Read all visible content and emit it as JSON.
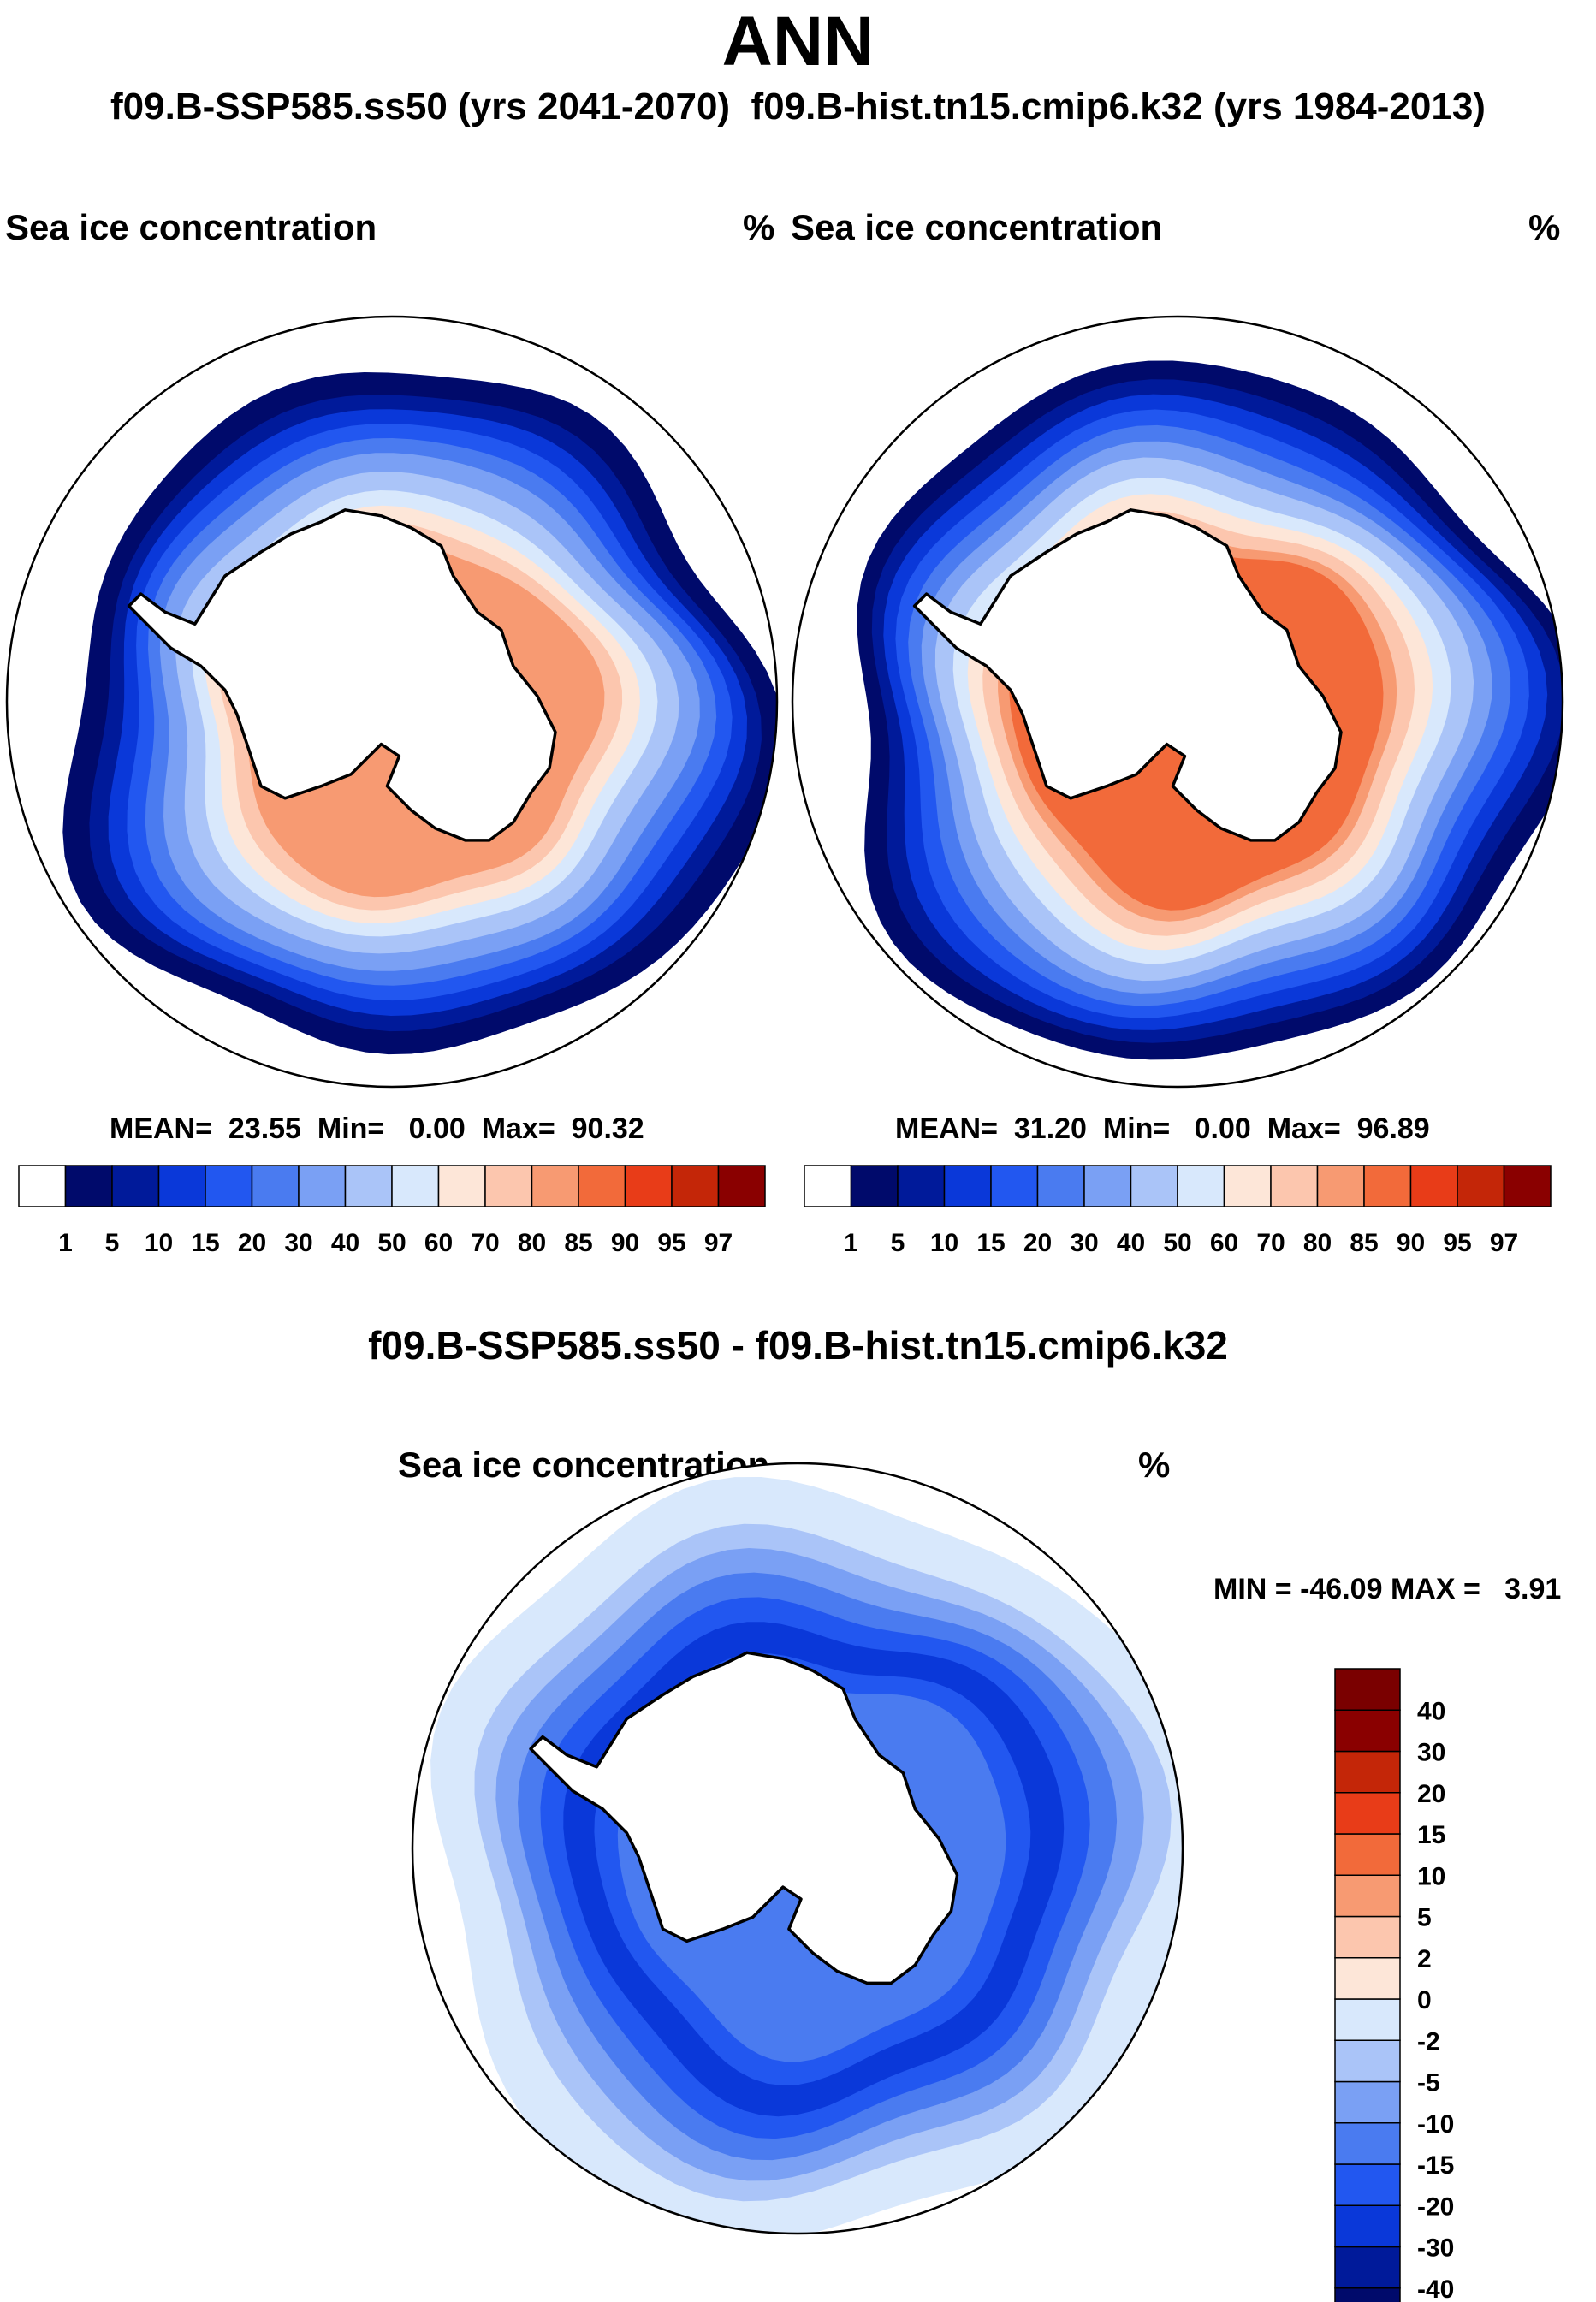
{
  "chart_data": [
    {
      "type": "heatmap",
      "title": "Sea ice concentration",
      "unit": "%",
      "case": "f09.B-SSP585.ss50 (yrs 2041-2070)",
      "stats": {
        "mean_label": "MEAN=",
        "mean": "23.55",
        "min_label": "Min=",
        "min": "0.00",
        "max_label": "Max=",
        "max": "90.32"
      },
      "levels": [
        "1",
        "5",
        "10",
        "15",
        "20",
        "30",
        "40",
        "50",
        "60",
        "70",
        "80",
        "85",
        "90",
        "95",
        "97"
      ],
      "rings": [
        {
          "value": 0.5,
          "radius": 1.0
        },
        {
          "value": 3,
          "radius": 0.91
        },
        {
          "value": 7,
          "radius": 0.85
        },
        {
          "value": 12,
          "radius": 0.81
        },
        {
          "value": 17,
          "radius": 0.77
        },
        {
          "value": 25,
          "radius": 0.73
        },
        {
          "value": 35,
          "radius": 0.69
        },
        {
          "value": 45,
          "radius": 0.64
        },
        {
          "value": 55,
          "radius": 0.59
        },
        {
          "value": 65,
          "radius": 0.55
        },
        {
          "value": 75,
          "radius": 0.51
        },
        {
          "value": 82,
          "radius": 0.47
        }
      ]
    },
    {
      "type": "heatmap",
      "title": "Sea ice concentration",
      "unit": "%",
      "case": "f09.B-hist.tn15.cmip6.k32 (yrs 1984-2013)",
      "stats": {
        "mean_label": "MEAN=",
        "mean": "31.20",
        "min_label": "Min=",
        "min": "0.00",
        "max_label": "Max=",
        "max": "96.89"
      },
      "levels": [
        "1",
        "5",
        "10",
        "15",
        "20",
        "30",
        "40",
        "50",
        "60",
        "70",
        "80",
        "85",
        "90",
        "95",
        "97"
      ],
      "rings": [
        {
          "value": 0.5,
          "radius": 1.0
        },
        {
          "value": 3,
          "radius": 0.93
        },
        {
          "value": 7,
          "radius": 0.88
        },
        {
          "value": 12,
          "radius": 0.84
        },
        {
          "value": 17,
          "radius": 0.8
        },
        {
          "value": 25,
          "radius": 0.76
        },
        {
          "value": 35,
          "radius": 0.72
        },
        {
          "value": 45,
          "radius": 0.68
        },
        {
          "value": 55,
          "radius": 0.63
        },
        {
          "value": 65,
          "radius": 0.59
        },
        {
          "value": 75,
          "radius": 0.55
        },
        {
          "value": 82,
          "radius": 0.51
        },
        {
          "value": 87,
          "radius": 0.48
        }
      ]
    },
    {
      "type": "heatmap",
      "title": "Sea ice concentration",
      "unit": "%",
      "case": "f09.B-SSP585.ss50 - f09.B-hist.tn15.cmip6.k32",
      "minmax": {
        "min_label": "MIN =",
        "min": "-46.09",
        "max_label": "MAX =",
        "max": "3.91"
      },
      "levels": [
        "-40",
        "-30",
        "-20",
        "-15",
        "-10",
        "-5",
        "-2",
        "0",
        "2",
        "5",
        "10",
        "15",
        "20",
        "30",
        "40"
      ],
      "rings": [
        {
          "value": -1,
          "radius": 1.0
        },
        {
          "value": -3.5,
          "radius": 0.88
        },
        {
          "value": -7.5,
          "radius": 0.82
        },
        {
          "value": -12.5,
          "radius": 0.76
        },
        {
          "value": -17.5,
          "radius": 0.7
        },
        {
          "value": -25,
          "radius": 0.64
        },
        {
          "value": -17.5,
          "radius": 0.56
        },
        {
          "value": -12.5,
          "radius": 0.5
        }
      ]
    }
  ],
  "page": {
    "title": "ANN",
    "subtitle": "f09.B-SSP585.ss50 (yrs 2041-2070)  f09.B-hist.tn15.cmip6.k32 (yrs 1984-2013)"
  },
  "colors": {
    "abs": [
      "#ffffff",
      "#000a6b",
      "#001a9a",
      "#0a38d9",
      "#2257f0",
      "#4a7bf0",
      "#7aa0f4",
      "#aac4f8",
      "#d8e8fc",
      "#fde6d8",
      "#fcc6ae",
      "#f79a72",
      "#f26a3a",
      "#e83c18",
      "#c42608",
      "#8a0000"
    ],
    "diff": [
      "#000a6b",
      "#001a9a",
      "#0a38d9",
      "#2257f0",
      "#4a7bf0",
      "#7aa0f4",
      "#aac4f8",
      "#d8e8fc",
      "#fde6d8",
      "#fcc6ae",
      "#f79a72",
      "#f26a3a",
      "#e83c18",
      "#c42608",
      "#8a0000"
    ]
  }
}
